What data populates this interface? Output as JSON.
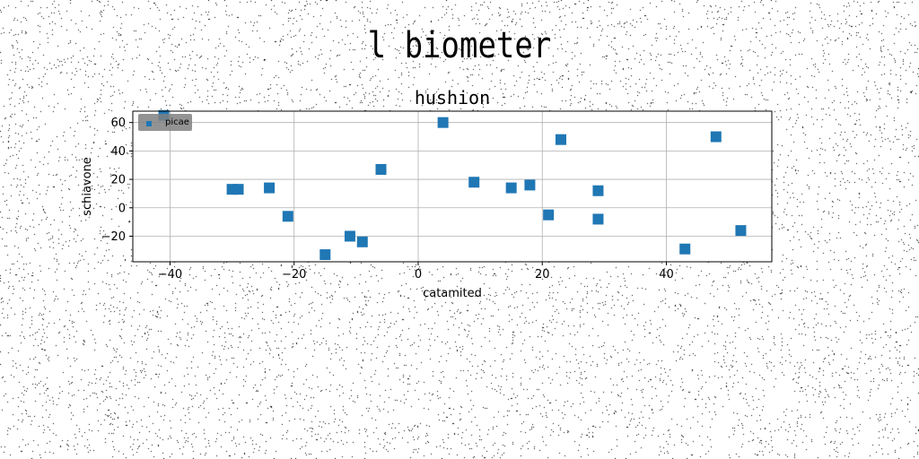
{
  "figure_title": "l biometer",
  "chart_data": {
    "type": "scatter",
    "title": "hushion",
    "xlabel": "catamited",
    "ylabel": "schiavone",
    "xlim": [
      -46,
      57
    ],
    "ylim": [
      -38,
      68
    ],
    "xticks": [
      -40,
      -20,
      0,
      20,
      40
    ],
    "yticks": [
      -20,
      0,
      20,
      40,
      60
    ],
    "xtick_labels": [
      "−40",
      "−20",
      "0",
      "20",
      "40"
    ],
    "ytick_labels": [
      "−20",
      "0",
      "20",
      "40",
      "60"
    ],
    "grid": true,
    "legend_position": "top-left",
    "series": [
      {
        "name": "picae",
        "color": "#1f77b4",
        "marker": "square",
        "points": [
          {
            "x": -41,
            "y": 65
          },
          {
            "x": -30,
            "y": 13
          },
          {
            "x": -29,
            "y": 13
          },
          {
            "x": -24,
            "y": 14
          },
          {
            "x": -21,
            "y": -6
          },
          {
            "x": -15,
            "y": -33
          },
          {
            "x": -11,
            "y": -20
          },
          {
            "x": -9,
            "y": -24
          },
          {
            "x": -6,
            "y": 27
          },
          {
            "x": 4,
            "y": 60
          },
          {
            "x": 9,
            "y": 18
          },
          {
            "x": 15,
            "y": 14
          },
          {
            "x": 18,
            "y": 16
          },
          {
            "x": 21,
            "y": -5
          },
          {
            "x": 23,
            "y": 48
          },
          {
            "x": 29,
            "y": 12
          },
          {
            "x": 29,
            "y": -8
          },
          {
            "x": 43,
            "y": -29
          },
          {
            "x": 48,
            "y": 50
          },
          {
            "x": 52,
            "y": -16
          }
        ]
      }
    ]
  }
}
